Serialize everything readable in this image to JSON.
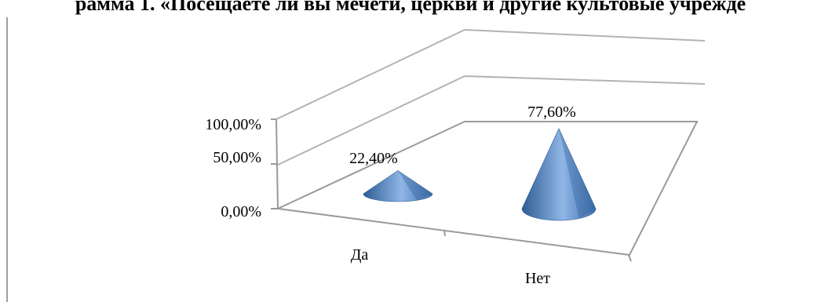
{
  "title": "рамма 1. «Посещаете ли вы мечети, церкви и другие культовые учрежде",
  "chart_data": {
    "type": "bar",
    "shape": "3d-cone",
    "categories": [
      "Да",
      "Нет"
    ],
    "values": [
      22.4,
      77.6
    ],
    "data_labels": [
      "22,40%",
      "77,60%"
    ],
    "y_ticks": [
      "0,00%",
      "50,00%",
      "100,00%"
    ],
    "ylim": [
      0,
      100
    ],
    "grid": true,
    "legend": "none",
    "colors": {
      "cone": "#4f81bd",
      "cone_light": "#a9c8ee",
      "cone_dark": "#2e5d94",
      "axis": "#9a9a9a",
      "border": "#7f7f7f"
    }
  }
}
